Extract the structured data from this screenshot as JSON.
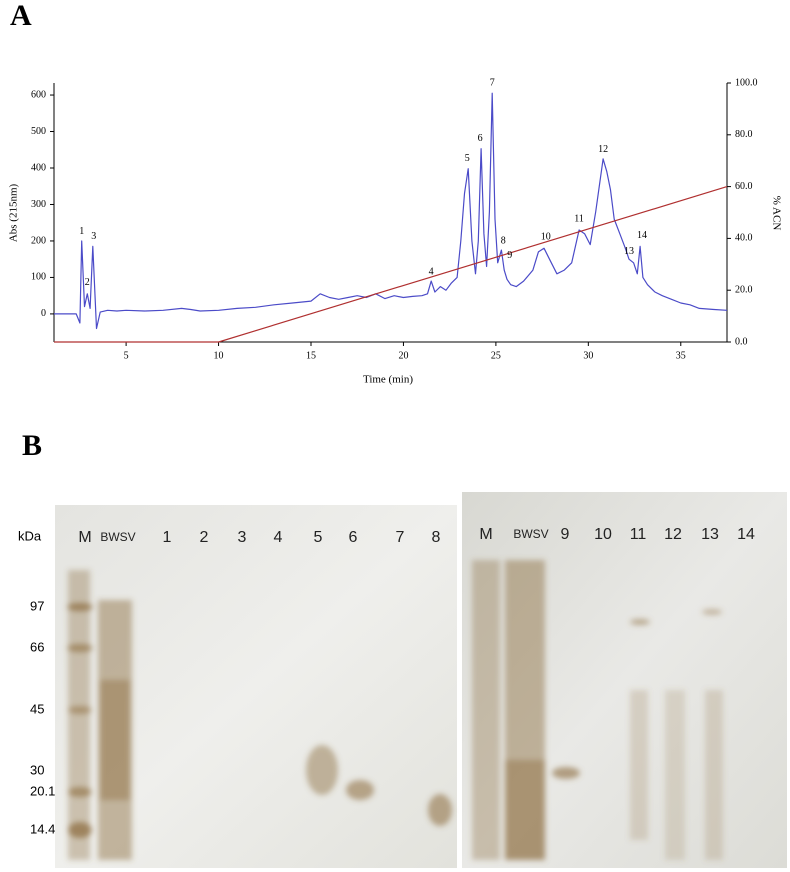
{
  "chart_data": {
    "type": "line",
    "panel_label": "A",
    "xlabel": "Time (min)",
    "ylabel": "Abs (215nm)",
    "y2label": "% ACN",
    "xlim": [
      1.1,
      37.5
    ],
    "xticks": [
      5,
      10,
      15,
      20,
      25,
      30,
      35
    ],
    "ylim": [
      -77,
      633
    ],
    "yticks": [
      0,
      100,
      200,
      300,
      400,
      500,
      600
    ],
    "y2lim": [
      0,
      100
    ],
    "y2ticks": [
      {
        "value": 0,
        "label": "0.0"
      },
      {
        "value": 20,
        "label": "20.0"
      },
      {
        "value": 40,
        "label": "40.0"
      },
      {
        "value": 60,
        "label": "60.0"
      },
      {
        "value": 80,
        "label": "80.0"
      },
      {
        "value": 100,
        "label": "100.0"
      }
    ],
    "series": [
      {
        "color": "#4b4bc8",
        "x": [
          1.1,
          2.3,
          2.5,
          2.6,
          2.75,
          2.9,
          3.05,
          3.2,
          3.4,
          3.6,
          4.0,
          4.5,
          5.0,
          6,
          7,
          8,
          8.5,
          9,
          10,
          11,
          12,
          13,
          14,
          15,
          15.5,
          16,
          16.5,
          17,
          17.5,
          18,
          18.5,
          19,
          19.5,
          20,
          20.5,
          21,
          21.3,
          21.5,
          21.7,
          22,
          22.3,
          22.6,
          22.9,
          23.1,
          23.3,
          23.5,
          23.7,
          23.9,
          24.05,
          24.2,
          24.35,
          24.5,
          24.65,
          24.8,
          24.95,
          25.1,
          25.3,
          25.45,
          25.6,
          25.8,
          26.1,
          26.5,
          27,
          27.3,
          27.6,
          27.9,
          28.3,
          28.7,
          29.1,
          29.5,
          29.8,
          30.1,
          30.4,
          30.8,
          31.0,
          31.2,
          31.4,
          31.7,
          32.0,
          32.2,
          32.45,
          32.65,
          32.8,
          32.95,
          33.2,
          33.6,
          34,
          34.5,
          35,
          35.5,
          36,
          36.8,
          37.5
        ],
        "values": [
          0,
          0,
          -25,
          200,
          20,
          55,
          15,
          185,
          -40,
          5,
          10,
          8,
          10,
          8,
          10,
          15,
          12,
          8,
          10,
          15,
          18,
          25,
          30,
          35,
          55,
          45,
          40,
          45,
          50,
          45,
          55,
          42,
          50,
          45,
          48,
          50,
          55,
          90,
          60,
          75,
          65,
          85,
          100,
          200,
          330,
          398,
          200,
          110,
          200,
          453,
          220,
          130,
          280,
          605,
          260,
          140,
          175,
          120,
          95,
          80,
          75,
          90,
          120,
          170,
          180,
          150,
          110,
          120,
          140,
          230,
          220,
          190,
          280,
          425,
          390,
          340,
          260,
          220,
          180,
          150,
          140,
          110,
          185,
          100,
          80,
          60,
          50,
          40,
          30,
          25,
          15,
          12,
          10
        ]
      },
      {
        "color": "#b03030",
        "axis": "y2",
        "x": [
          1.1,
          10,
          37.5
        ],
        "values": [
          0,
          0,
          60
        ]
      }
    ],
    "annotations": [
      {
        "text": "1",
        "x": 2.6,
        "y": 225
      },
      {
        "text": "2",
        "x": 2.9,
        "y": 85
      },
      {
        "text": "3",
        "x": 3.25,
        "y": 212
      },
      {
        "text": "4",
        "x": 21.5,
        "y": 115
      },
      {
        "text": "5",
        "x": 23.45,
        "y": 425
      },
      {
        "text": "6",
        "x": 24.15,
        "y": 480
      },
      {
        "text": "7",
        "x": 24.8,
        "y": 632
      },
      {
        "text": "8",
        "x": 25.4,
        "y": 200
      },
      {
        "text": "9",
        "x": 25.75,
        "y": 160
      },
      {
        "text": "10",
        "x": 27.7,
        "y": 210
      },
      {
        "text": "11",
        "x": 29.5,
        "y": 260
      },
      {
        "text": "12",
        "x": 30.8,
        "y": 450
      },
      {
        "text": "13",
        "x": 32.2,
        "y": 170
      },
      {
        "text": "14",
        "x": 32.9,
        "y": 215
      }
    ]
  },
  "gel": {
    "panel_label": "B",
    "unit_label": "kDa",
    "markers": [
      "97",
      "66",
      "45",
      "30",
      "20.1",
      "14.4"
    ],
    "left_lanes": [
      "M",
      "BWSV",
      "1",
      "2",
      "3",
      "4",
      "5",
      "6",
      "7",
      "8"
    ],
    "right_lanes": [
      "M",
      "BWSV",
      "9",
      "10",
      "11",
      "12",
      "13",
      "14"
    ]
  }
}
